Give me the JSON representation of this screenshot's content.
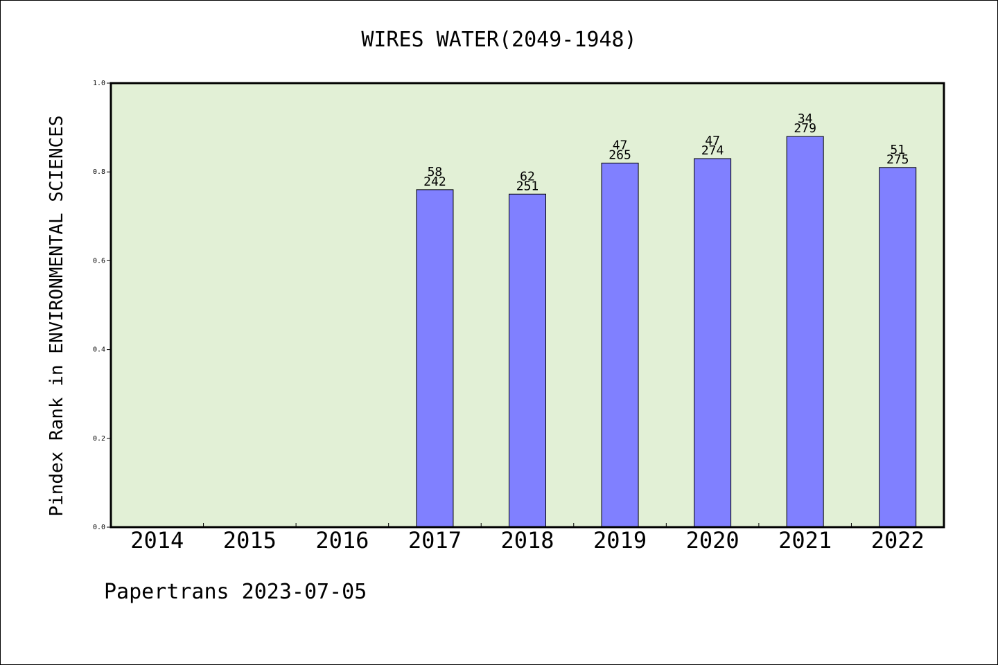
{
  "chart_data": {
    "type": "bar",
    "title": "WIRES WATER(2049-1948)",
    "xlabel": "",
    "ylabel": "Pindex Rank in ENVIRONMENTAL SCIENCES",
    "ylim": [
      0,
      1.0
    ],
    "yticks": [
      "0.0",
      "0.2",
      "0.4",
      "0.6",
      "0.8",
      "1.0"
    ],
    "categories": [
      "2014",
      "2015",
      "2016",
      "2017",
      "2018",
      "2019",
      "2020",
      "2021",
      "2022"
    ],
    "values": [
      null,
      null,
      null,
      0.76,
      0.75,
      0.82,
      0.83,
      0.88,
      0.81
    ],
    "labels_top": [
      "",
      "",
      "",
      "58",
      "62",
      "47",
      "47",
      "34",
      "51"
    ],
    "labels_bottom": [
      "",
      "",
      "",
      "242",
      "251",
      "265",
      "274",
      "279",
      "275"
    ],
    "colors": {
      "plot_bg": "#e2f0d6",
      "bar": "#8080ff"
    },
    "grid": false,
    "legend": "none"
  },
  "footer": "Papertrans 2023-07-05"
}
